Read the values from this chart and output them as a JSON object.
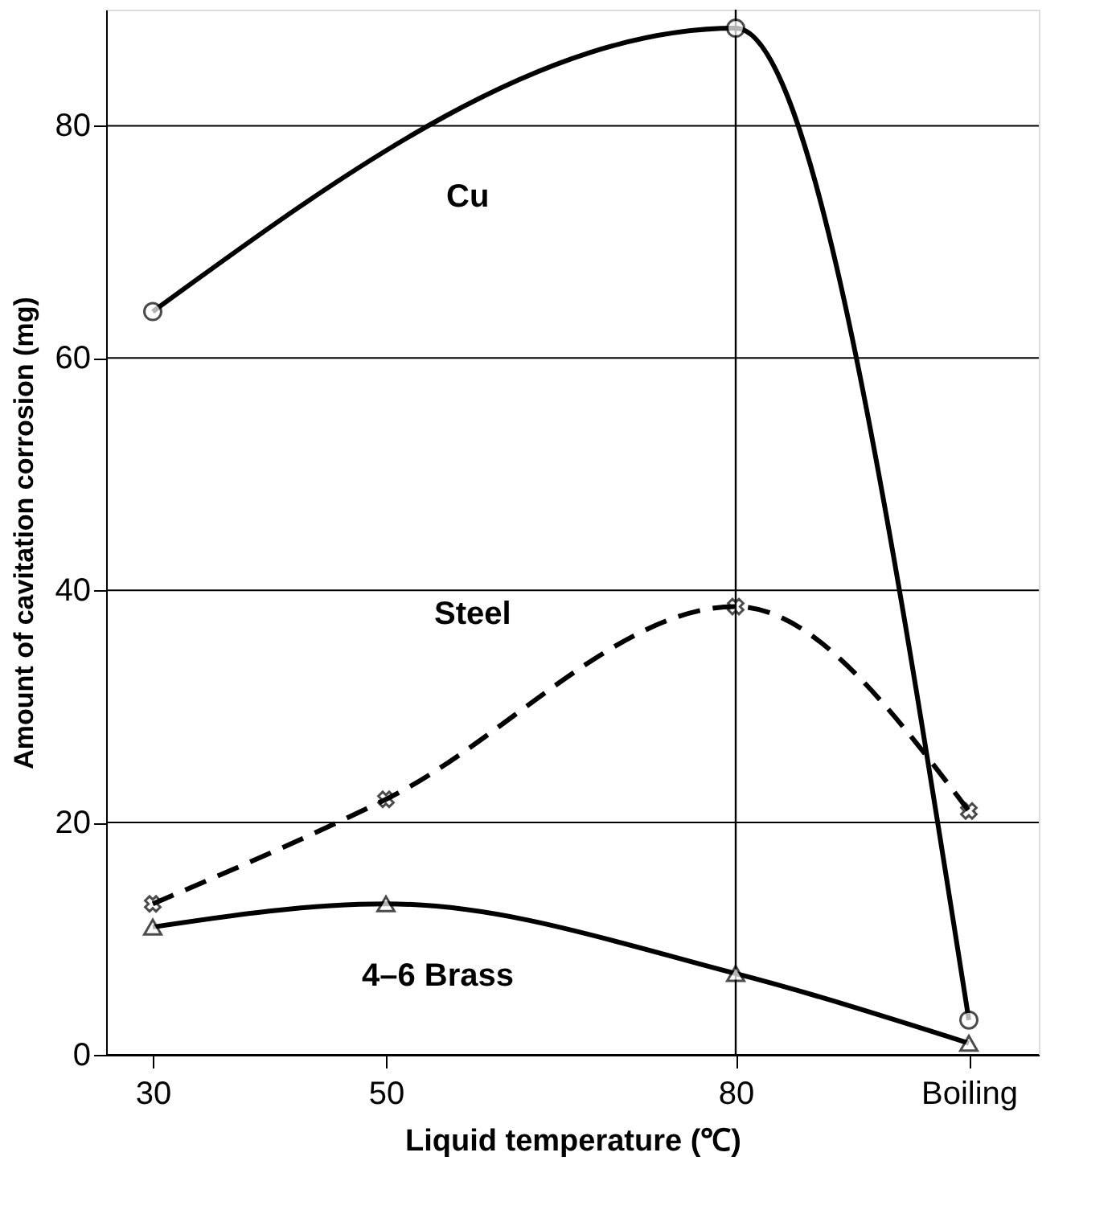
{
  "chart_data": {
    "type": "line",
    "xlabel": "Liquid temperature (℃)",
    "ylabel": "Amount of cavitation corrosion (mg)",
    "series": [
      {
        "name": "Cu",
        "color": "#000000",
        "x": [
          30,
          80,
          100
        ],
        "values": [
          64,
          88.4,
          3
        ],
        "marker": "circle",
        "line_style": "solid"
      },
      {
        "name": "Steel",
        "color": "#000000",
        "x": [
          30,
          50,
          80,
          100
        ],
        "values": [
          13,
          22,
          38.6,
          21
        ],
        "marker": "cross",
        "line_style": "dashed"
      },
      {
        "name": "4–6 Brass",
        "color": "#000000",
        "x": [
          30,
          50,
          80,
          100
        ],
        "values": [
          11,
          13,
          7,
          1
        ],
        "marker": "triangle",
        "line_style": "solid"
      }
    ],
    "xlim": [
      26,
      106
    ],
    "ylim": [
      0,
      90
    ],
    "xticks": [
      30,
      50,
      80,
      {
        "value": 100,
        "label": "Boiling"
      }
    ],
    "yticks": [
      0,
      20,
      40,
      60,
      80
    ],
    "ref_lines": [
      {
        "axis": "x",
        "value": 80
      }
    ],
    "grid": "y"
  }
}
